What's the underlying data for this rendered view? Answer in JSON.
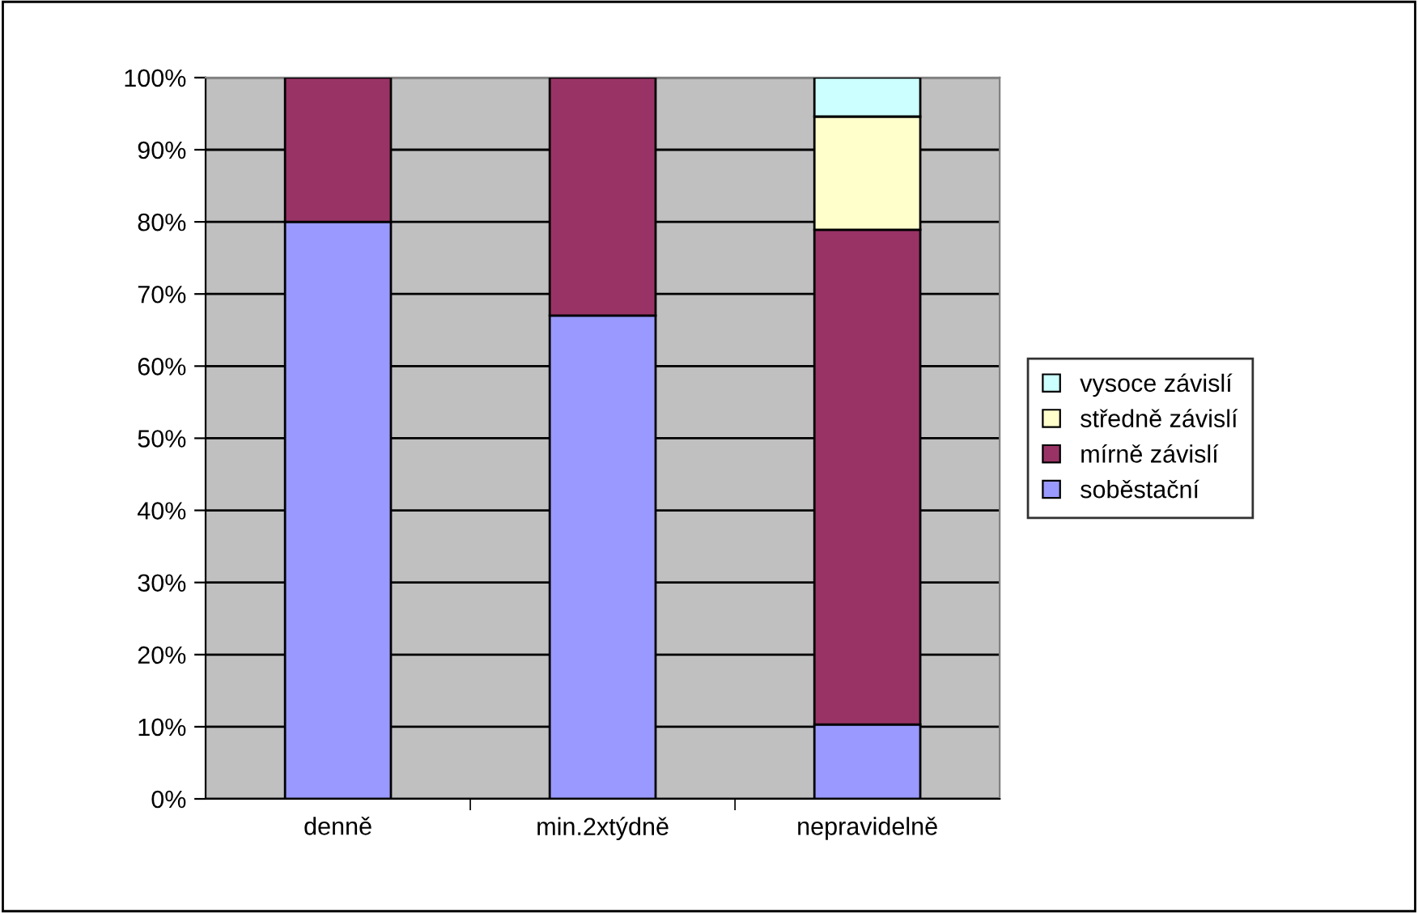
{
  "chart_data": {
    "type": "bar",
    "stacked": true,
    "categories": [
      "denně",
      "min.2xtýdně",
      "nepravidelně"
    ],
    "series": [
      {
        "name": "soběstační",
        "color": "#9999ff",
        "values": [
          80,
          67,
          10.3
        ]
      },
      {
        "name": "mírně závislí",
        "color": "#993366",
        "values": [
          20,
          33,
          68.6
        ]
      },
      {
        "name": "středně závislí",
        "color": "#ffffcc",
        "values": [
          null,
          null,
          15.7
        ]
      },
      {
        "name": "vysoce závislí",
        "color": "#ccffff",
        "values": [
          null,
          null,
          5.4
        ]
      }
    ],
    "ylim": [
      0,
      100
    ],
    "yticks": [
      {
        "value": 0,
        "label": "0%"
      },
      {
        "value": 10,
        "label": "10%"
      },
      {
        "value": 20,
        "label": "20%"
      },
      {
        "value": 30,
        "label": "30%"
      },
      {
        "value": 40,
        "label": "40%"
      },
      {
        "value": 50,
        "label": "50%"
      },
      {
        "value": 60,
        "label": "60%"
      },
      {
        "value": 70,
        "label": "70%"
      },
      {
        "value": 80,
        "label": "80%"
      },
      {
        "value": 90,
        "label": "90%"
      },
      {
        "value": 100,
        "label": "100%"
      }
    ],
    "grid": "y",
    "legend": "right"
  }
}
